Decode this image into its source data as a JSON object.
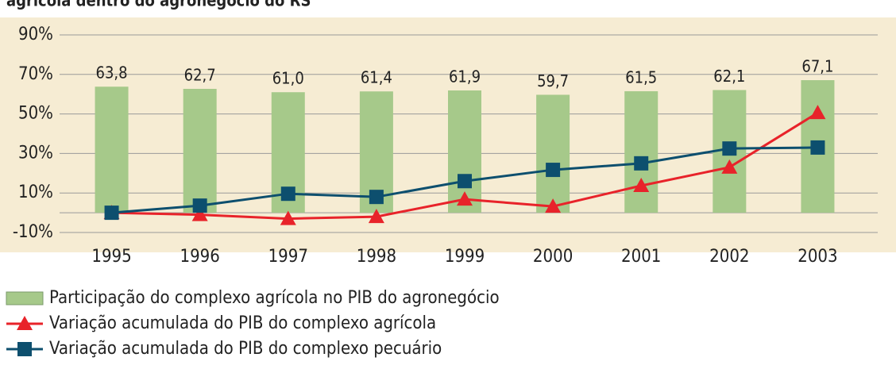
{
  "chart_data": {
    "type": "combo",
    "title": "agrícola dentro do agronegócio do RS",
    "categories": [
      "1995",
      "1996",
      "1997",
      "1998",
      "1999",
      "2000",
      "2001",
      "2002",
      "2003"
    ],
    "series": [
      {
        "name": "Participação do complexo agrícola no PIB do agronegócio",
        "type": "bar",
        "color": "#a6c98a",
        "values": [
          63.8,
          62.7,
          61.0,
          61.4,
          61.9,
          59.7,
          61.5,
          62.1,
          67.1
        ],
        "value_labels": [
          "63,8",
          "62,7",
          "61,0",
          "61,4",
          "61,9",
          "59,7",
          "61,5",
          "62,1",
          "67,1"
        ]
      },
      {
        "name": "Variação acumulada do PIB do complexo agrícola",
        "type": "line",
        "marker": "triangle",
        "color": "#e8232a",
        "values": [
          0,
          -1,
          -3,
          -2,
          6.8,
          3.2,
          13.7,
          23,
          50.6
        ]
      },
      {
        "name": "Variação acumulada do PIB do complexo pecuário",
        "type": "line",
        "marker": "square",
        "color": "#0d4f6e",
        "values": [
          0,
          3.6,
          9.6,
          8,
          16,
          21.7,
          25,
          32.5,
          33
        ]
      }
    ],
    "ylim": [
      -10,
      90
    ],
    "yticks": [
      {
        "value": -10,
        "label": "-10%"
      },
      {
        "value": 10,
        "label": "10%"
      },
      {
        "value": 30,
        "label": "30%"
      },
      {
        "value": 50,
        "label": "50%"
      },
      {
        "value": 70,
        "label": "70%"
      },
      {
        "value": 90,
        "label": "90%"
      }
    ],
    "grid": true
  }
}
